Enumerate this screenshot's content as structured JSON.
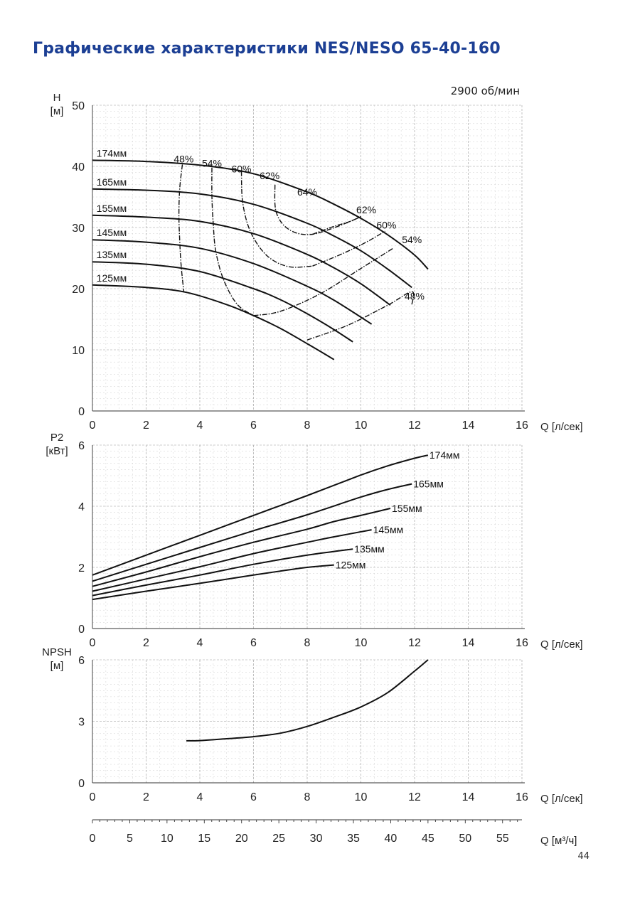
{
  "page": {
    "title": "Графические характеристики NES/NESO 65-40-160",
    "speed": "2900 об/мин",
    "page_number": "44"
  },
  "colors": {
    "title": "#1c3f94",
    "curves": "#111111",
    "grid": "#9a9a9a"
  },
  "chart_data": [
    {
      "type": "line",
      "title": "",
      "ylabel_line1": "H",
      "ylabel_line2": "[м]",
      "xlabel": "Q [л/сек]",
      "xlim": [
        0,
        16
      ],
      "ylim": [
        0,
        50
      ],
      "xticks": [
        0,
        2,
        4,
        6,
        8,
        10,
        12,
        14,
        16
      ],
      "yticks": [
        0,
        10,
        20,
        30,
        40,
        50
      ],
      "grid": true,
      "series": [
        {
          "name": "174мм",
          "x": [
            0,
            2,
            4,
            6,
            8,
            9,
            10,
            11,
            12,
            12.5
          ],
          "y": [
            41,
            40.8,
            40.2,
            38.8,
            35.8,
            33.8,
            31.5,
            28.8,
            25.5,
            23.2
          ]
        },
        {
          "name": "165мм",
          "x": [
            0,
            2,
            4,
            6,
            8,
            9,
            10,
            11,
            11.9
          ],
          "y": [
            36.3,
            36.1,
            35.5,
            33.8,
            30.7,
            28.6,
            26.2,
            23.2,
            20.2
          ]
        },
        {
          "name": "155мм",
          "x": [
            0,
            2,
            4,
            6,
            8,
            9,
            10,
            11.1
          ],
          "y": [
            32,
            31.7,
            31,
            29,
            25.6,
            23.4,
            20.8,
            17.3
          ]
        },
        {
          "name": "145мм",
          "x": [
            0,
            2,
            4,
            6,
            8,
            9,
            10.4
          ],
          "y": [
            28,
            27.6,
            26.6,
            24.1,
            20.4,
            18.1,
            14.2
          ]
        },
        {
          "name": "135мм",
          "x": [
            0,
            2,
            4,
            6,
            7,
            8,
            9,
            9.7
          ],
          "y": [
            24.4,
            24,
            22.8,
            20,
            18.2,
            15.9,
            13.3,
            11.3
          ]
        },
        {
          "name": "125мм",
          "x": [
            0,
            2,
            3.5,
            5,
            6,
            7,
            8,
            9
          ],
          "y": [
            20.6,
            20.2,
            19.4,
            17.4,
            15.6,
            13.5,
            11,
            8.4
          ]
        }
      ],
      "efficiency": [
        {
          "label": "48%",
          "x": [
            3.35,
            3.25,
            3.22,
            3.25,
            3.3,
            3.4
          ],
          "y": [
            40.3,
            36.3,
            32,
            28,
            24,
            19.6
          ]
        },
        {
          "label": "54%",
          "x": [
            4.45,
            4.45,
            4.5,
            4.6,
            4.9,
            5.4,
            6
          ],
          "y": [
            39.8,
            35.2,
            30.6,
            26,
            21.3,
            17.4,
            15.6
          ]
        },
        {
          "label": "60%",
          "x": [
            5.55,
            5.6,
            5.9,
            6.5,
            7.3,
            8.2
          ],
          "y": [
            39.2,
            34,
            29.2,
            25.4,
            23.6,
            23.7
          ]
        },
        {
          "label": "62%",
          "x": [
            6.8,
            6.82,
            7.1,
            7.6,
            8.2,
            8.9,
            9.6,
            10
          ],
          "y": [
            37,
            33,
            30.5,
            29.1,
            28.9,
            29.8,
            31,
            31.8
          ]
        },
        {
          "label": "62%",
          "x": [
            8.2,
            9,
            9.6,
            10
          ],
          "y": [
            28.9,
            30.2,
            31,
            31.8
          ]
        },
        {
          "label": "60%",
          "x": [
            8.2,
            9.3,
            10.2,
            10.9
          ],
          "y": [
            23.7,
            25.7,
            27.6,
            29.4
          ]
        },
        {
          "label": "54%",
          "x": [
            6,
            7,
            8.5,
            10,
            11.2
          ],
          "y": [
            15.6,
            16.3,
            19.2,
            23.3,
            26.6
          ]
        },
        {
          "label": "48%",
          "x": [
            8,
            9.5,
            11,
            11.9,
            11.9
          ],
          "y": [
            11.6,
            14,
            17.3,
            19.5,
            17.4
          ]
        }
      ],
      "efficiency_labels": [
        {
          "text": "48%",
          "x": 3.4,
          "y": 41.2
        },
        {
          "text": "54%",
          "x": 4.45,
          "y": 40.5
        },
        {
          "text": "60%",
          "x": 5.55,
          "y": 39.6
        },
        {
          "text": "62%",
          "x": 6.6,
          "y": 38.5
        },
        {
          "text": "64%",
          "x": 8,
          "y": 35.8
        },
        {
          "text": "62%",
          "x": 10.2,
          "y": 32.9
        },
        {
          "text": "60%",
          "x": 10.95,
          "y": 30.4
        },
        {
          "text": "54%",
          "x": 11.9,
          "y": 28
        },
        {
          "text": "48%",
          "x": 12,
          "y": 18.8
        }
      ]
    },
    {
      "type": "line",
      "title": "",
      "ylabel_line1": "P2",
      "ylabel_line2": "[кВт]",
      "xlabel": "Q [л/сек]",
      "xlim": [
        0,
        16
      ],
      "ylim": [
        0,
        6
      ],
      "xticks": [
        0,
        2,
        4,
        6,
        8,
        10,
        12,
        14,
        16
      ],
      "yticks": [
        0,
        2,
        4,
        6
      ],
      "grid": true,
      "series": [
        {
          "name": "174мм",
          "x": [
            0,
            2,
            4,
            6,
            8,
            10,
            11,
            12,
            12.5
          ],
          "y": [
            1.75,
            2.4,
            3.05,
            3.7,
            4.35,
            5.02,
            5.32,
            5.57,
            5.67
          ]
        },
        {
          "name": "165мм",
          "x": [
            0,
            2,
            4,
            6,
            8,
            10,
            11,
            11.9
          ],
          "y": [
            1.55,
            2.1,
            2.65,
            3.2,
            3.72,
            4.3,
            4.55,
            4.73
          ]
        },
        {
          "name": "155мм",
          "x": [
            0,
            2,
            4,
            6,
            8,
            9,
            10,
            11.1
          ],
          "y": [
            1.38,
            1.85,
            2.35,
            2.82,
            3.25,
            3.5,
            3.7,
            3.93
          ]
        },
        {
          "name": "145мм",
          "x": [
            0,
            2,
            4,
            6,
            8,
            9,
            10.4
          ],
          "y": [
            1.22,
            1.62,
            2.02,
            2.45,
            2.82,
            3.0,
            3.23
          ]
        },
        {
          "name": "135мм",
          "x": [
            0,
            2,
            4,
            6,
            8,
            9,
            9.7
          ],
          "y": [
            1.08,
            1.42,
            1.75,
            2.1,
            2.4,
            2.52,
            2.6
          ]
        },
        {
          "name": "125мм",
          "x": [
            0,
            2,
            4,
            6,
            7,
            8,
            9
          ],
          "y": [
            0.95,
            1.22,
            1.48,
            1.75,
            1.88,
            2.0,
            2.08
          ]
        }
      ]
    },
    {
      "type": "line",
      "title": "",
      "ylabel_line1": "NPSH",
      "ylabel_line2": "[м]",
      "xlabel": "Q [л/сек]",
      "xlim": [
        0,
        16
      ],
      "ylim": [
        0,
        6
      ],
      "xticks": [
        0,
        2,
        4,
        6,
        8,
        10,
        12,
        14,
        16
      ],
      "yticks": [
        0,
        3,
        6
      ],
      "grid": true,
      "series": [
        {
          "name": "NPSH",
          "x": [
            3.5,
            4,
            5,
            6,
            7,
            8,
            9,
            10,
            11,
            12,
            12.5
          ],
          "y": [
            2.05,
            2.06,
            2.15,
            2.25,
            2.42,
            2.75,
            3.2,
            3.7,
            4.4,
            5.45,
            6.0
          ]
        }
      ]
    }
  ],
  "secondary_axis": {
    "xlabel": "Q [м³/ч]",
    "ticks": [
      0,
      5,
      10,
      15,
      20,
      25,
      30,
      35,
      40,
      45,
      50,
      55
    ],
    "max": 57.6
  }
}
